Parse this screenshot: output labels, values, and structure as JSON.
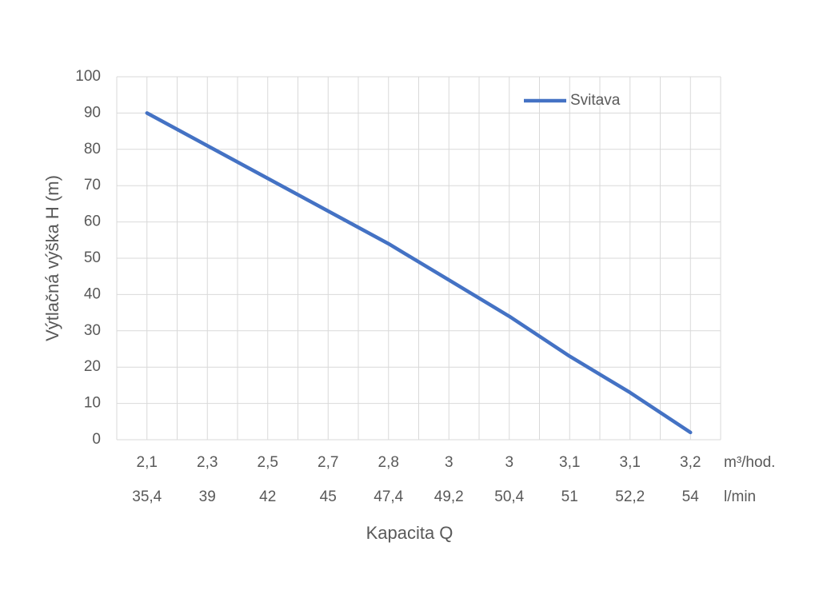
{
  "chart_data": {
    "type": "line",
    "x_label": "Kapacita Q",
    "y_label": "Výtlačná výška H (m)",
    "categories": [
      "2,1",
      "2,3",
      "2,5",
      "2,7",
      "2,8",
      "3",
      "3",
      "3,1",
      "3,1",
      "3,2"
    ],
    "categories_secondary": [
      "35,4",
      "39",
      "42",
      "45",
      "47,4",
      "49,2",
      "50,4",
      "51",
      "52,2",
      "54"
    ],
    "category_units": [
      "m³/hod.",
      "l/min"
    ],
    "series": [
      {
        "name": "Svitava",
        "color": "#4472c4",
        "values": [
          90,
          81,
          72,
          63,
          54,
          44,
          34,
          23,
          13,
          2
        ]
      }
    ],
    "ylim": [
      0,
      100
    ],
    "yticks": [
      0,
      10,
      20,
      30,
      40,
      50,
      60,
      70,
      80,
      90,
      100
    ],
    "grid": true,
    "legend": "top-right"
  }
}
